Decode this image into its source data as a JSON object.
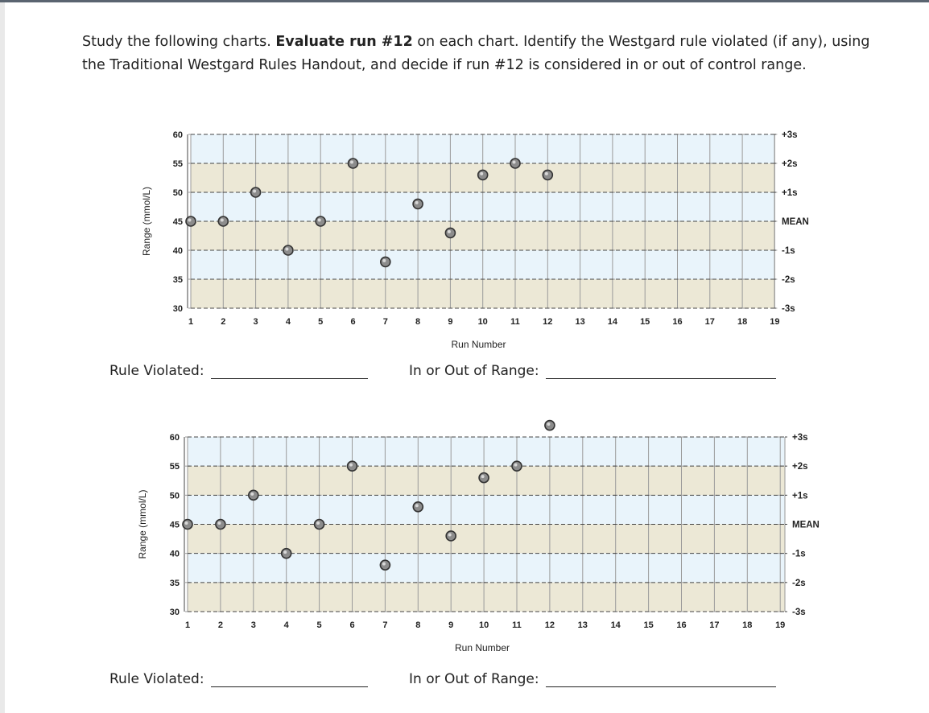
{
  "instructions": {
    "part1": "Study the following charts. ",
    "bold": "Evaluate run #12",
    "part2": " on each chart. Identify the Westgard rule violated (if any), using the Traditional Westgard Rules Handout, and decide if run #12 is considered in or out of control range."
  },
  "charts": [
    {
      "ylabel": "Range (mmol/L)",
      "xlabel": "Run Number",
      "rule_label": "Rule Violated:",
      "range_label": "In or Out of Range:"
    },
    {
      "ylabel": "Range (mmol/L)",
      "xlabel": "Run Number",
      "rule_label": "Rule Violated:",
      "range_label": "In or Out of Range:"
    }
  ],
  "chart_data": [
    {
      "type": "scatter",
      "title": "",
      "xlabel": "Run Number",
      "ylabel": "Range (mmol/L)",
      "x": [
        1,
        2,
        3,
        4,
        5,
        6,
        7,
        8,
        9,
        10,
        11,
        12
      ],
      "y": [
        45,
        45,
        50,
        40,
        45,
        55,
        38,
        48,
        43,
        53,
        55,
        53
      ],
      "xticks": [
        "1",
        "2",
        "3",
        "4",
        "5",
        "6",
        "7",
        "8",
        "9",
        "10",
        "11",
        "12",
        "13",
        "14",
        "15",
        "16",
        "17",
        "18",
        "19"
      ],
      "yticks": [
        "30",
        "35",
        "40",
        "45",
        "50",
        "55",
        "60"
      ],
      "ylim": [
        30,
        60
      ],
      "sd_labels": [
        "+3s",
        "+2s",
        "+1s",
        "MEAN",
        "-1s",
        "-2s",
        "-3s"
      ],
      "colors": {
        "band_outer": "#e9f4fb",
        "band_inner": "#ece8d6",
        "point": "#8c8c8c"
      }
    },
    {
      "type": "scatter",
      "title": "",
      "xlabel": "Run Number",
      "ylabel": "Range (mmol/L)",
      "x": [
        1,
        2,
        3,
        4,
        5,
        6,
        7,
        8,
        9,
        10,
        11,
        12
      ],
      "y": [
        45,
        45,
        50,
        40,
        45,
        55,
        38,
        48,
        43,
        53,
        55,
        62
      ],
      "xticks": [
        "1",
        "2",
        "3",
        "4",
        "5",
        "6",
        "7",
        "8",
        "9",
        "10",
        "11",
        "12",
        "13",
        "14",
        "15",
        "16",
        "17",
        "18",
        "19"
      ],
      "yticks": [
        "30",
        "35",
        "40",
        "45",
        "50",
        "55",
        "60"
      ],
      "ylim": [
        30,
        60
      ],
      "sd_labels": [
        "+3s",
        "+2s",
        "+1s",
        "MEAN",
        "-1s",
        "-2s",
        "-3s"
      ],
      "colors": {
        "band_outer": "#e9f4fb",
        "band_inner": "#ece8d6",
        "point": "#8c8c8c"
      }
    }
  ]
}
